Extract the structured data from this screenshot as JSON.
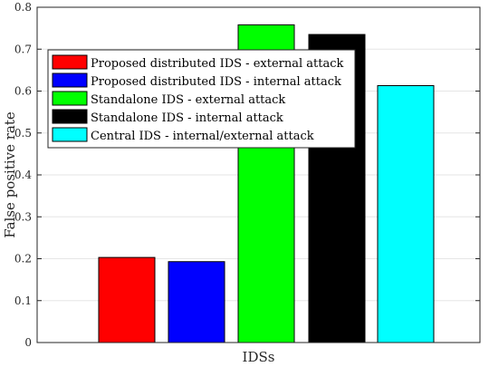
{
  "chart_data": {
    "type": "bar",
    "xlabel": "IDSs",
    "ylabel": "False positive rate",
    "ylim": [
      0,
      0.8
    ],
    "yticks": [
      "0",
      "0.1",
      "0.2",
      "0.3",
      "0.4",
      "0.5",
      "0.6",
      "0.7",
      "0.8"
    ],
    "grid": true,
    "legend_position": "top-left",
    "series": [
      {
        "name": "Proposed distributed IDS - external attack",
        "value": 0.203,
        "color": "#ff0000"
      },
      {
        "name": "Proposed distributed IDS - internal attack",
        "value": 0.193,
        "color": "#0000ff"
      },
      {
        "name": "Standalone IDS - external attack",
        "value": 0.758,
        "color": "#00ff00"
      },
      {
        "name": "Standalone IDS - internal attack",
        "value": 0.735,
        "color": "#000000"
      },
      {
        "name": "Central IDS - internal/external attack",
        "value": 0.613,
        "color": "#00ffff"
      }
    ]
  }
}
